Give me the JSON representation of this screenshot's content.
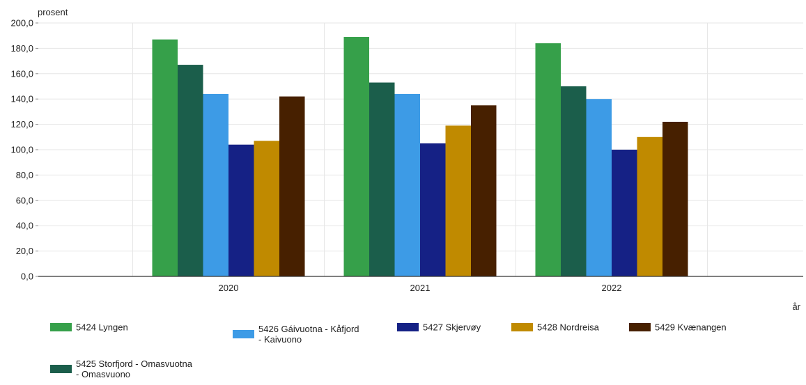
{
  "chart_data": {
    "type": "bar",
    "title": "",
    "xlabel": "år",
    "ylabel": "prosent",
    "categories": [
      "2020",
      "2021",
      "2022"
    ],
    "ylim": [
      0,
      200
    ],
    "yticks": [
      "0,0",
      "20,0",
      "40,0",
      "60,0",
      "80,0",
      "100,0",
      "120,0",
      "140,0",
      "160,0",
      "180,0",
      "200,0"
    ],
    "grid": true,
    "legend_position": "bottom",
    "series": [
      {
        "name": "5424 Lyngen",
        "legend_lines": [
          "5424 Lyngen"
        ],
        "color": "#36a04a",
        "values": [
          187,
          189,
          184
        ]
      },
      {
        "name": "5425 Storfjord - Omasvuotna - Omasvuono",
        "legend_lines": [
          "5425 Storfjord - Omasvuotna",
          "- Omasvuono"
        ],
        "color": "#1b5e4b",
        "values": [
          167,
          153,
          150
        ]
      },
      {
        "name": "5426 Gáivuotna - Kåfjord - Kaivuono",
        "legend_lines": [
          "5426 Gáivuotna - Kåfjord",
          "- Kaivuono"
        ],
        "color": "#3d9be6",
        "values": [
          144,
          144,
          140
        ]
      },
      {
        "name": "5427 Skjervøy",
        "legend_lines": [
          "5427 Skjervøy"
        ],
        "color": "#152185",
        "values": [
          104,
          105,
          100
        ]
      },
      {
        "name": "5428 Nordreisa",
        "legend_lines": [
          "5428 Nordreisa"
        ],
        "color": "#c08a00",
        "values": [
          107,
          119,
          110
        ]
      },
      {
        "name": "5429 Kvænangen",
        "legend_lines": [
          "5429 Kvænangen"
        ],
        "color": "#472000",
        "values": [
          142,
          135,
          122
        ]
      }
    ]
  }
}
